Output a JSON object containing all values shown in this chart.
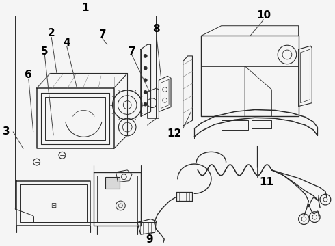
{
  "background_color": "#f5f5f5",
  "line_color": "#2a2a2a",
  "label_color": "#000000",
  "fig_width": 4.9,
  "fig_height": 3.6,
  "dpi": 100
}
